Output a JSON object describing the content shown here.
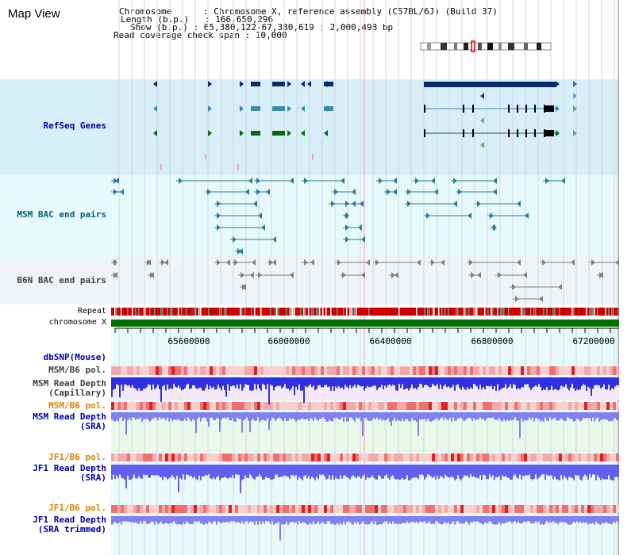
{
  "title": "Map View",
  "info": {
    "chromosome_key": "Chromosome",
    "chromosome_val": "Chromosome X, reference assembly (C57BL/6J) (Build 37)",
    "length_key": "Length (b.p.)",
    "length_val": "166,650,296",
    "show_key": "Show (b.p.)",
    "show_val": "65,380,122-67,380,619 : 2,000,498 bp",
    "span_key": "Read coverage check span",
    "span_val": "10,000"
  },
  "tracks": {
    "refseq": "RefSeq Genes",
    "msm_bac": "MSM BAC end pairs",
    "b6n_bac": "B6N BAC end pairs",
    "repeat": "Repeat",
    "chromosome": "chromosome X",
    "dbsnp": "dbSNP(Mouse)",
    "msm_pol_1": "MSM/B6 pol.",
    "msm_depth_cap": "MSM Read Depth\n(Capillary)",
    "msm_pol_2": "MSM/B6 pol.",
    "msm_depth_sra": "MSM Read Depth\n(SRA)",
    "jf1_pol_1": "JF1/B6 pol.",
    "jf1_depth_sra": "JF1 Read Depth\n(SRA)",
    "jf1_pol_2": "JF1/B6 pol.",
    "jf1_depth_trim": "JF1 Read Depth\n(SRA trimmed)"
  },
  "axis": {
    "ticks": [
      "65600000",
      "66000000",
      "66400000",
      "66800000",
      "67200000"
    ],
    "range_start": 65380122,
    "range_end": 67380619
  },
  "colors": {
    "refseq_bg": "#d8eef8",
    "bac_bg": "#e6fafa",
    "b6n_bg": "#f0f4f8",
    "label_blue": "#0000aa",
    "label_teal": "#006080",
    "label_orange": "#e08000",
    "label_gray": "#404040",
    "chrom_green": "#007000",
    "repeat_red": "#cc0000",
    "depth_blue": "#3030e0",
    "depth_lightblue": "#8080f0",
    "pol_pink": "#f0a0a0"
  }
}
